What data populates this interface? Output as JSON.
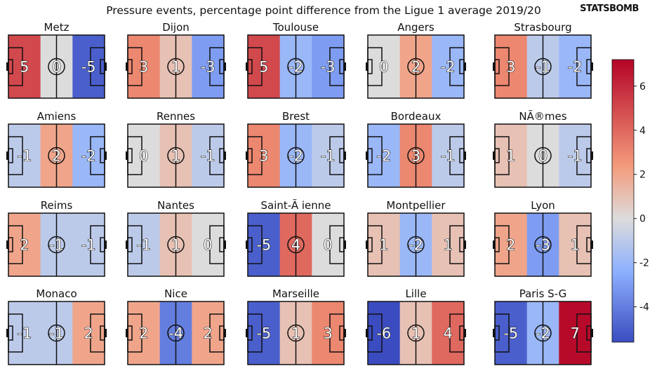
{
  "chart_data": {
    "type": "heatmap",
    "title": "Pressure events, percentage point difference from the Ligue 1 average 2019/20",
    "brand": "STATSBOMB",
    "colorbar": {
      "min": -5.6,
      "max": 7.2,
      "ticks": [
        -4,
        -2,
        0,
        2,
        4,
        6
      ]
    },
    "teams": [
      {
        "name": "Metz",
        "values": [
          5,
          0,
          -5
        ]
      },
      {
        "name": "Dijon",
        "values": [
          3,
          1,
          -3
        ]
      },
      {
        "name": "Toulouse",
        "values": [
          5,
          -2,
          -3
        ]
      },
      {
        "name": "Angers",
        "values": [
          0,
          2,
          -2
        ]
      },
      {
        "name": "Strasbourg",
        "values": [
          3,
          -1,
          -2
        ]
      },
      {
        "name": "Amiens",
        "values": [
          -1,
          2,
          -2
        ]
      },
      {
        "name": "Rennes",
        "values": [
          0,
          1,
          -1
        ]
      },
      {
        "name": "Brest",
        "values": [
          3,
          -2,
          -1
        ]
      },
      {
        "name": "Bordeaux",
        "values": [
          -2,
          3,
          -1
        ]
      },
      {
        "name": "NÃ®mes",
        "values": [
          1,
          0,
          -1
        ]
      },
      {
        "name": "Reims",
        "values": [
          2,
          -1,
          -1
        ]
      },
      {
        "name": "Nantes",
        "values": [
          -1,
          1,
          0
        ]
      },
      {
        "name": "Saint-Ã\tienne",
        "values": [
          -5,
          4,
          0
        ]
      },
      {
        "name": "Montpellier",
        "values": [
          1,
          -2,
          1
        ]
      },
      {
        "name": "Lyon",
        "values": [
          2,
          -3,
          1
        ]
      },
      {
        "name": "Monaco",
        "values": [
          -1,
          -1,
          2
        ]
      },
      {
        "name": "Nice",
        "values": [
          2,
          -4,
          2
        ]
      },
      {
        "name": "Marseille",
        "values": [
          -5,
          1,
          3
        ]
      },
      {
        "name": "Lille",
        "values": [
          -6,
          1,
          4
        ]
      },
      {
        "name": "Paris S-G",
        "values": [
          -5,
          -2,
          7
        ]
      }
    ]
  }
}
